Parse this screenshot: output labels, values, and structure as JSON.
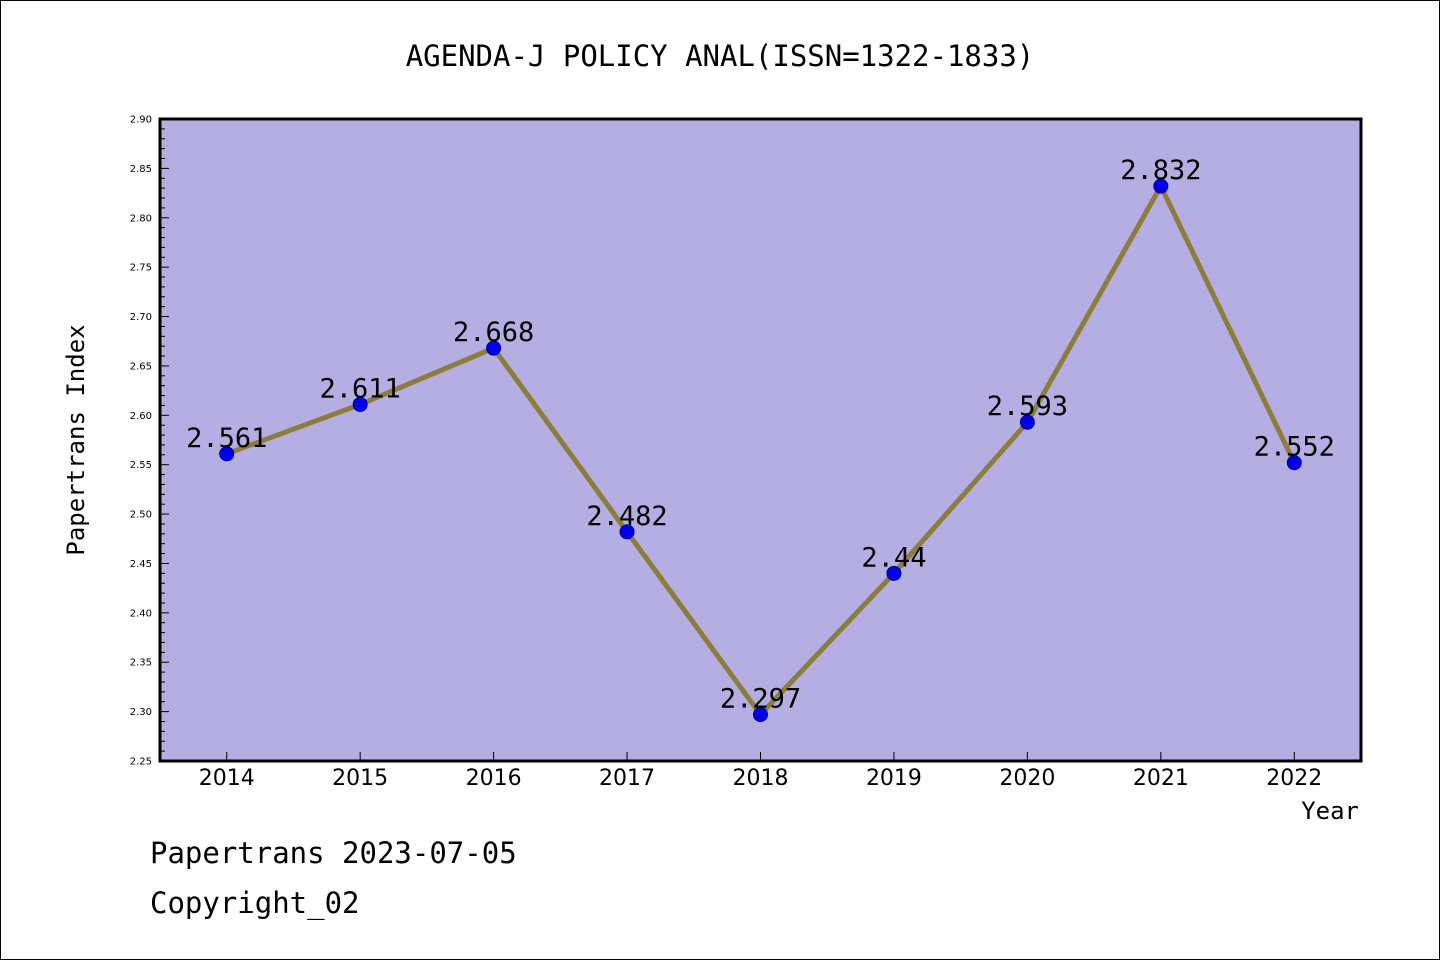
{
  "chart_data": {
    "type": "line",
    "title": "AGENDA-J POLICY ANAL(ISSN=1322-1833)",
    "xlabel": "Year",
    "ylabel": "Papertrans Index",
    "categories": [
      "2014",
      "2015",
      "2016",
      "2017",
      "2018",
      "2019",
      "2020",
      "2021",
      "2022"
    ],
    "series": [
      {
        "values": [
          2.561,
          2.611,
          2.668,
          2.482,
          2.297,
          2.44,
          2.593,
          2.832,
          2.552
        ]
      }
    ],
    "data_labels": [
      "2.561",
      "2.611",
      "2.668",
      "2.482",
      "2.297",
      "2.44",
      "2.593",
      "2.832",
      "2.552"
    ],
    "ylim": [
      2.25,
      2.9
    ],
    "yticks": [
      "2.25",
      "2.30",
      "2.35",
      "2.40",
      "2.45",
      "2.50",
      "2.55",
      "2.60",
      "2.65",
      "2.70",
      "2.75",
      "2.80",
      "2.85",
      "2.90"
    ],
    "grid": false,
    "legend": "none",
    "colors": {
      "plot_background": "#b5aee2",
      "line": "#8b7d3a",
      "marker_fill": "#0000ee",
      "marker_edge": "#00008b",
      "axis": "#000000"
    }
  },
  "footer": {
    "line1": "Papertrans 2023-07-05",
    "line2": "Copyright_02"
  }
}
